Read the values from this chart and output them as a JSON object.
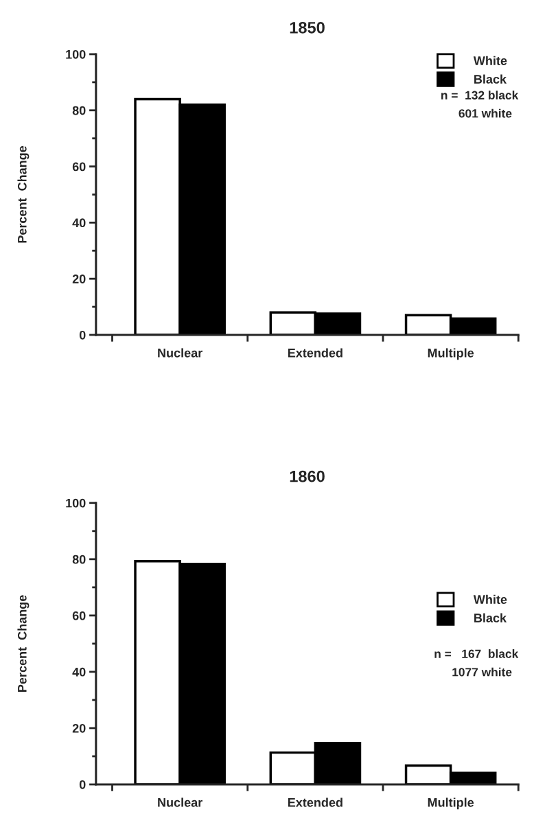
{
  "chart_data": [
    {
      "type": "bar",
      "title": "1850",
      "ylabel": "Percent  Change",
      "categories": [
        "Nuclear",
        "Extended",
        "Multiple"
      ],
      "series": [
        {
          "name": "White",
          "color": "#ffffff",
          "values": [
            84,
            8,
            7
          ]
        },
        {
          "name": "Black",
          "color": "#000000",
          "values": [
            82,
            7.6,
            5.8
          ]
        }
      ],
      "ylim": [
        0,
        100
      ],
      "yticks": [
        0,
        {
          "value": 10,
          "label": null
        },
        20,
        {
          "value": 30,
          "label": null
        },
        40,
        {
          "value": 50,
          "label": null
        },
        60,
        {
          "value": 70,
          "label": null
        },
        80,
        {
          "value": 90,
          "label": null
        },
        100
      ],
      "grid": false,
      "legend": "top right",
      "annotations": [
        "n =  132 black",
        "601 white"
      ]
    },
    {
      "type": "bar",
      "title": "1860",
      "ylabel": "Percent  Change",
      "categories": [
        "Nuclear",
        "Extended",
        "Multiple"
      ],
      "series": [
        {
          "name": "White",
          "color": "#ffffff",
          "values": [
            79.3,
            11.3,
            6.7
          ]
        },
        {
          "name": "Black",
          "color": "#000000",
          "values": [
            78.3,
            14.7,
            4.1
          ]
        }
      ],
      "ylim": [
        0,
        100
      ],
      "yticks": [
        0,
        {
          "value": 10,
          "label": null
        },
        20,
        {
          "value": 30,
          "label": null
        },
        40,
        {
          "value": 50,
          "label": null
        },
        60,
        {
          "value": 70,
          "label": null
        },
        80,
        {
          "value": 90,
          "label": null
        },
        100
      ],
      "grid": false,
      "legend": "right",
      "annotations": [
        "n =   167  black",
        "1077 white"
      ]
    }
  ]
}
